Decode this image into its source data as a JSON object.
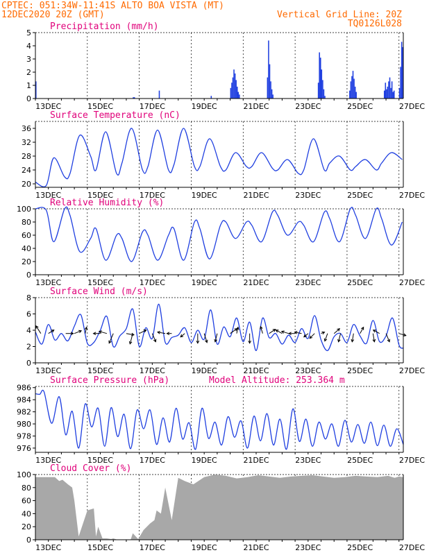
{
  "header": {
    "line1_left": "CPTEC:   051:34W-11:41S   ALTO BOA VISTA (MT)",
    "line2_left": "12DEC2020 20Z (GMT)",
    "line2_right": "Vertical Grid Line: 20Z",
    "line3_right": "TQ0126L028"
  },
  "colors": {
    "header": "#ff6a00",
    "title": "#e0007a",
    "line": "#1f3fe0",
    "cloud": "#a8a8a8",
    "arrow": "#000000"
  },
  "chart_data": [
    {
      "type": "bar",
      "title": "Precipitation (mm/h)",
      "ylim": [
        0,
        5
      ],
      "yticks": [
        "0",
        "1",
        "2",
        "3",
        "4",
        "5"
      ],
      "xticks": [
        "13DEC",
        "15DEC",
        "17DEC",
        "19DEC",
        "21DEC",
        "23DEC",
        "25DEC",
        "27DEC"
      ],
      "x_range_hours": [
        0,
        340
      ],
      "values": [
        1.3,
        0,
        0,
        0,
        0,
        0,
        0,
        0,
        0,
        0,
        0,
        0,
        0,
        0,
        0,
        0,
        0,
        0,
        0,
        0,
        0,
        0,
        0,
        0,
        0,
        0,
        0,
        0,
        0,
        0,
        0,
        0,
        0,
        0,
        0,
        0,
        0,
        0,
        0,
        0,
        0,
        0,
        0,
        0,
        0,
        0,
        0,
        0,
        0,
        0,
        0,
        0,
        0,
        0,
        0,
        0,
        0,
        0,
        0,
        0,
        0,
        0,
        0,
        0,
        0,
        0,
        0,
        0,
        0,
        0,
        0,
        0,
        0,
        0,
        0,
        0,
        0,
        0,
        0,
        0,
        0,
        0,
        0,
        0,
        0,
        0,
        0,
        0,
        0,
        0,
        0.1,
        0.1,
        0,
        0,
        0,
        0,
        0,
        0,
        0,
        0,
        0,
        0,
        0,
        0,
        0,
        0,
        0,
        0,
        0,
        0,
        0,
        0,
        0,
        0,
        0.6,
        0,
        0,
        0,
        0,
        0,
        0,
        0,
        0,
        0,
        0,
        0,
        0,
        0,
        0,
        0,
        0,
        0,
        0,
        0,
        0,
        0,
        0,
        0,
        0,
        0,
        0,
        0,
        0,
        0,
        0,
        0,
        0,
        0,
        0,
        0,
        0,
        0,
        0,
        0,
        0,
        0,
        0,
        0,
        0,
        0,
        0,
        0,
        0.2,
        0,
        0,
        0,
        0,
        0,
        0,
        0,
        0,
        0,
        0,
        0,
        0,
        0,
        0,
        0,
        0,
        0,
        0.8,
        1.2,
        1.6,
        2.2,
        1.9,
        1.4,
        0.9,
        0.5,
        0.3,
        0,
        0,
        0,
        0,
        0,
        0,
        0,
        0,
        0,
        0,
        0,
        0,
        0,
        0,
        0,
        0,
        0,
        0,
        0,
        0,
        0,
        0,
        0,
        0,
        0,
        1.6,
        4.4,
        2.6,
        1.3,
        0.7,
        0.3,
        0,
        0,
        0,
        0,
        0,
        0,
        0,
        0,
        0,
        0,
        0,
        0,
        0,
        0,
        0,
        0,
        0,
        0,
        0,
        0,
        0,
        0,
        0,
        0,
        0,
        0,
        0,
        0,
        0,
        0,
        0,
        0,
        0,
        0,
        0,
        0,
        0,
        0,
        0,
        0,
        0,
        1.2,
        3.5,
        3.1,
        2.2,
        1.4,
        0.7,
        0.2,
        0,
        0,
        0,
        0,
        0,
        0,
        0,
        0,
        0,
        0,
        0,
        0,
        0,
        0,
        0,
        0,
        0,
        0,
        0,
        0,
        0,
        0,
        0.6,
        1.3,
        1.7,
        2.1,
        1.5,
        0.9,
        0.5,
        0,
        0,
        0,
        0,
        0,
        0,
        0,
        0,
        0,
        0,
        0,
        0,
        0,
        0,
        0,
        0,
        0,
        0,
        0,
        0,
        0,
        0,
        0,
        0,
        0,
        0.6,
        1.2,
        0.7,
        0.9,
        1.3,
        1.6,
        0.8,
        1.3,
        0.5,
        0.6,
        0,
        0,
        0,
        0,
        0.8,
        2.4,
        4.3,
        3.9
      ]
    },
    {
      "type": "line",
      "title": "Surface Temperature (nC)",
      "ylim": [
        19,
        38
      ],
      "yticks": [
        "20",
        "24",
        "28",
        "32",
        "36"
      ],
      "xticks": [
        "13DEC",
        "15DEC",
        "17DEC",
        "19DEC",
        "21DEC",
        "23DEC",
        "25DEC",
        "27DEC"
      ],
      "x_range_hours": [
        0,
        340
      ],
      "series": [
        {
          "x": [
            0,
            10,
            17,
            27,
            32,
            41,
            51,
            56,
            65,
            75,
            80,
            89,
            99,
            104,
            113,
            123,
            128,
            137,
            147,
            152,
            161,
            171,
            176,
            185,
            195,
            200,
            209,
            219,
            224,
            233,
            243,
            248,
            257,
            267,
            272,
            281,
            291,
            296,
            305,
            315,
            320,
            329,
            339
          ],
          "y": [
            20.5,
            19.5,
            27.5,
            22,
            23,
            34,
            28,
            24,
            35,
            23,
            26,
            36,
            24,
            25,
            35.5,
            24,
            25.5,
            36,
            25,
            25,
            33,
            25,
            24,
            29,
            25,
            25,
            29,
            24.5,
            24,
            27,
            23,
            24,
            33,
            24,
            26,
            28,
            24,
            25,
            27,
            24,
            26,
            29,
            27
          ]
        }
      ]
    },
    {
      "type": "line",
      "title": "Relative Humidity (%)",
      "ylim": [
        0,
        100
      ],
      "yticks": [
        "0",
        "20",
        "40",
        "60",
        "80",
        "100"
      ],
      "xticks": [
        "13DEC",
        "15DEC",
        "17DEC",
        "19DEC",
        "21DEC",
        "23DEC",
        "25DEC",
        "27DEC"
      ],
      "x_range_hours": [
        0,
        340
      ],
      "series": [
        {
          "x": [
            0,
            10,
            17,
            27,
            32,
            41,
            51,
            56,
            65,
            75,
            80,
            89,
            99,
            104,
            113,
            123,
            128,
            137,
            147,
            152,
            161,
            171,
            176,
            185,
            195,
            200,
            209,
            219,
            224,
            233,
            243,
            248,
            257,
            267,
            272,
            281,
            291,
            296,
            305,
            315,
            320,
            329,
            339
          ],
          "y": [
            100,
            98,
            50,
            100,
            90,
            35,
            55,
            70,
            22,
            60,
            55,
            20,
            65,
            60,
            22,
            60,
            70,
            22,
            80,
            70,
            24,
            75,
            80,
            55,
            80,
            75,
            50,
            95,
            90,
            60,
            80,
            75,
            50,
            95,
            85,
            50,
            100,
            90,
            55,
            100,
            85,
            45,
            80
          ]
        }
      ]
    },
    {
      "type": "line",
      "title": "Surface Wind (m/s)",
      "ylim": [
        0,
        8
      ],
      "yticks": [
        "0",
        "2",
        "4",
        "6",
        "8"
      ],
      "xticks": [
        "13DEC",
        "15DEC",
        "17DEC",
        "19DEC",
        "21DEC",
        "23DEC",
        "25DEC",
        "27DEC"
      ],
      "x_range_hours": [
        0,
        340
      ],
      "series": [
        {
          "x": [
            0,
            6,
            12,
            18,
            24,
            30,
            36,
            42,
            48,
            54,
            60,
            66,
            72,
            78,
            84,
            90,
            96,
            102,
            108,
            114,
            120,
            126,
            132,
            138,
            144,
            150,
            156,
            162,
            168,
            174,
            180,
            186,
            192,
            198,
            204,
            210,
            216,
            222,
            228,
            234,
            240,
            246,
            252,
            258,
            264,
            270,
            276,
            282,
            288,
            294,
            300,
            306,
            312,
            318,
            324,
            330,
            336,
            340
          ],
          "y": [
            3.8,
            2.3,
            4.7,
            2.8,
            3.6,
            2.7,
            4.5,
            5.9,
            2.4,
            2.5,
            4.0,
            5.7,
            2.0,
            3.3,
            4.2,
            6.6,
            2.0,
            4.3,
            3.0,
            7.2,
            2.5,
            3.1,
            3.4,
            4.3,
            2.5,
            4.0,
            2.9,
            6.5,
            2.3,
            4.4,
            3.2,
            5.5,
            2.6,
            5.0,
            1.5,
            5.5,
            3.1,
            3.6,
            2.3,
            3.4,
            2.5,
            4.2,
            3.0,
            5.8,
            2.8,
            1.5,
            3.2,
            3.6,
            2.5,
            4.7,
            3.3,
            2.4,
            5.2,
            2.6,
            3.3,
            5.5,
            2.2,
            1.8
          ]
        }
      ],
      "arrows": [
        {
          "x": 5,
          "dx": -7,
          "dy": -11
        },
        {
          "x": 12,
          "dx": 8,
          "dy": -5
        },
        {
          "x": 28,
          "dx": 11,
          "dy": 0
        },
        {
          "x": 36,
          "dx": 10,
          "dy": -4
        },
        {
          "x": 46,
          "dx": 2,
          "dy": -9
        },
        {
          "x": 60,
          "dx": -10,
          "dy": 0
        },
        {
          "x": 66,
          "dx": -11,
          "dy": -3
        },
        {
          "x": 72,
          "dx": -6,
          "dy": 14
        },
        {
          "x": 84,
          "dx": 11,
          "dy": 2
        },
        {
          "x": 90,
          "dx": -4,
          "dy": 15
        },
        {
          "x": 96,
          "dx": 10,
          "dy": -5
        },
        {
          "x": 108,
          "dx": 5,
          "dy": 12
        },
        {
          "x": 120,
          "dx": -11,
          "dy": -2
        },
        {
          "x": 126,
          "dx": -7,
          "dy": 0
        },
        {
          "x": 138,
          "dx": -6,
          "dy": 5
        },
        {
          "x": 150,
          "dx": 0,
          "dy": 14
        },
        {
          "x": 156,
          "dx": 4,
          "dy": 13
        },
        {
          "x": 168,
          "dx": -3,
          "dy": 12
        },
        {
          "x": 180,
          "dx": 10,
          "dy": -7
        },
        {
          "x": 186,
          "dx": 2,
          "dy": -9
        },
        {
          "x": 198,
          "dx": 0,
          "dy": 14
        },
        {
          "x": 210,
          "dx": -3,
          "dy": -10
        },
        {
          "x": 216,
          "dx": 9,
          "dy": -6
        },
        {
          "x": 228,
          "dx": -9,
          "dy": -5
        },
        {
          "x": 234,
          "dx": -10,
          "dy": -3
        },
        {
          "x": 240,
          "dx": -9,
          "dy": 0
        },
        {
          "x": 246,
          "dx": -10,
          "dy": -2
        },
        {
          "x": 252,
          "dx": -6,
          "dy": 5
        },
        {
          "x": 258,
          "dx": -7,
          "dy": 7
        },
        {
          "x": 264,
          "dx": 5,
          "dy": -2
        },
        {
          "x": 270,
          "dx": -4,
          "dy": 11
        },
        {
          "x": 276,
          "dx": 8,
          "dy": -7
        },
        {
          "x": 282,
          "dx": -3,
          "dy": 12
        },
        {
          "x": 294,
          "dx": -2,
          "dy": 12
        },
        {
          "x": 300,
          "dx": 5,
          "dy": -9
        },
        {
          "x": 312,
          "dx": 2,
          "dy": 12
        },
        {
          "x": 318,
          "dx": -9,
          "dy": -5
        },
        {
          "x": 324,
          "dx": 5,
          "dy": 12
        },
        {
          "x": 336,
          "dx": 10,
          "dy": 3
        }
      ]
    },
    {
      "type": "line",
      "title": "Surface Pressure (hPa)",
      "subtitle": "Model Altitude: 253.364  m",
      "ylim": [
        975.3,
        986.2
      ],
      "yticks": [
        "976",
        "978",
        "980",
        "982",
        "984",
        "986"
      ],
      "xticks": [
        "13DEC",
        "15DEC",
        "17DEC",
        "19DEC",
        "21DEC",
        "23DEC",
        "25DEC",
        "27DEC"
      ],
      "x_range_hours": [
        0,
        340
      ],
      "series": [
        {
          "x": [
            0,
            4,
            8,
            15,
            22,
            28,
            34,
            40,
            46,
            52,
            58,
            64,
            70,
            76,
            82,
            88,
            94,
            100,
            106,
            112,
            118,
            124,
            130,
            136,
            142,
            148,
            154,
            160,
            166,
            172,
            178,
            184,
            190,
            196,
            202,
            208,
            214,
            220,
            226,
            232,
            238,
            244,
            250,
            256,
            262,
            268,
            274,
            280,
            286,
            292,
            298,
            304,
            310,
            316,
            322,
            328,
            334,
            340
          ],
          "y": [
            985.0,
            984.9,
            985.3,
            980.1,
            984.5,
            978.2,
            982.1,
            976.0,
            983.3,
            979.5,
            982.6,
            976.3,
            982.7,
            977.9,
            981.6,
            975.9,
            982.3,
            979.2,
            982.3,
            976.6,
            981.0,
            977.0,
            982.6,
            977.5,
            980.2,
            975.8,
            982.6,
            977.6,
            980.3,
            976.5,
            981.2,
            977.8,
            980.5,
            976.0,
            981.3,
            977.2,
            981.7,
            976.5,
            980.8,
            975.8,
            982.5,
            977.1,
            980.8,
            976.3,
            980.3,
            977.5,
            980.0,
            976.3,
            980.6,
            977.0,
            979.9,
            976.8,
            980.3,
            976.4,
            979.8,
            976.3,
            979.2,
            976.6
          ]
        }
      ]
    },
    {
      "type": "area",
      "title": "Cloud Cover (%)",
      "ylim": [
        0,
        100
      ],
      "yticks": [
        "0",
        "20",
        "40",
        "60",
        "80",
        "100"
      ],
      "xticks": [
        "13DEC",
        "15DEC",
        "17DEC",
        "19DEC",
        "21DEC",
        "23DEC",
        "25DEC",
        "27DEC"
      ],
      "x_range_hours": [
        0,
        340
      ],
      "series": [
        {
          "x": [
            0,
            18,
            22,
            25,
            30,
            34,
            36,
            40,
            48,
            54,
            56,
            58,
            62,
            66,
            70,
            72,
            76,
            82,
            86,
            88,
            90,
            95,
            100,
            106,
            110,
            112,
            116,
            120,
            126,
            132,
            138,
            146,
            156,
            166,
            176,
            186,
            196,
            206,
            216,
            226,
            236,
            246,
            256,
            266,
            276,
            286,
            296,
            306,
            316,
            326,
            332,
            336,
            340
          ],
          "y": [
            96,
            96,
            90,
            92,
            85,
            80,
            60,
            5,
            45,
            48,
            5,
            20,
            2,
            2,
            1,
            2,
            0,
            0,
            0,
            0,
            10,
            1,
            15,
            25,
            30,
            45,
            40,
            80,
            30,
            95,
            90,
            85,
            96,
            100,
            98,
            94,
            96,
            99,
            97,
            95,
            97,
            98,
            99,
            97,
            95,
            96,
            98,
            97,
            96,
            98,
            95,
            97,
            96
          ]
        }
      ]
    }
  ]
}
